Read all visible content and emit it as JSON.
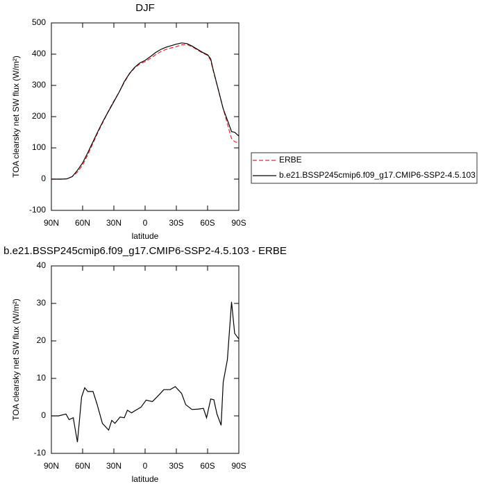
{
  "chart_data": [
    {
      "type": "line",
      "title": "DJF",
      "xlabel": "latitude",
      "ylabel": "TOA clearsky net SW flux (W/m²)",
      "x": [
        90,
        85,
        80,
        75,
        70,
        65,
        60,
        55,
        50,
        45,
        40,
        35,
        30,
        25,
        20,
        15,
        10,
        5,
        0,
        -5,
        -10,
        -15,
        -20,
        -25,
        -30,
        -35,
        -40,
        -45,
        -50,
        -55,
        -60,
        -63,
        -65,
        -70,
        -75,
        -80,
        -83,
        -86,
        -90
      ],
      "series": [
        {
          "name": "ERBE",
          "color": "#e8282a",
          "linestyle": "dashed",
          "values": [
            0,
            0,
            0,
            1,
            8,
            22,
            45,
            78,
            115,
            152,
            185,
            220,
            250,
            278,
            310,
            337,
            356,
            369,
            376,
            386,
            398,
            408,
            415,
            420,
            424,
            430,
            431,
            424,
            414,
            404,
            396,
            380,
            352,
            290,
            225,
            165,
            130,
            120,
            115
          ]
        },
        {
          "name": "b.e21.BSSP245cmip6.f09_g17.CMIP6-SSP2-4.5.103",
          "color": "#000000",
          "linestyle": "solid",
          "values": [
            0,
            0,
            0,
            1,
            8,
            28,
            52,
            85,
            120,
            155,
            188,
            218,
            248,
            278,
            312,
            338,
            358,
            372,
            380,
            392,
            405,
            415,
            422,
            427,
            432,
            436,
            434,
            426,
            416,
            406,
            398,
            385,
            355,
            290,
            225,
            180,
            152,
            150,
            138
          ]
        }
      ],
      "xlim": [
        90,
        -90
      ],
      "xticks": [
        {
          "value": 90,
          "label": "90N"
        },
        {
          "value": 60,
          "label": "60N"
        },
        {
          "value": 30,
          "label": "30N"
        },
        0,
        {
          "value": -30,
          "label": "30S"
        },
        {
          "value": -60,
          "label": "60S"
        },
        {
          "value": -90,
          "label": "90S"
        }
      ],
      "ylim": [
        -100,
        500
      ],
      "yticks": [
        -100,
        0,
        100,
        200,
        300,
        400,
        500
      ],
      "legend": "right"
    },
    {
      "type": "line",
      "title": "b.e21.BSSP245cmip6.f09_g17.CMIP6-SSP2-4.5.103 - ERBE",
      "xlabel": "latitude",
      "ylabel": "TOA clearsky net SW flux (W/m²)",
      "x": [
        90,
        83,
        76,
        73,
        69,
        65,
        61,
        58,
        55,
        50,
        46,
        41,
        35,
        32,
        29,
        24,
        20,
        17,
        13,
        9,
        4,
        -1,
        -7,
        -13,
        -18,
        -24,
        -29,
        -35,
        -39,
        -45,
        -51,
        -56,
        -59,
        -63,
        -66,
        -69,
        -73,
        -75,
        -79,
        -83,
        -86,
        -90
      ],
      "values": [
        0,
        0,
        0.5,
        -1,
        -0.5,
        -7,
        5,
        7.5,
        6.5,
        6.5,
        3,
        -2,
        -3.8,
        -1.2,
        -2,
        -0.3,
        -0.5,
        1.5,
        0.8,
        1.5,
        2.3,
        4.2,
        3.8,
        5.5,
        7,
        7,
        7.8,
        6,
        3,
        1.7,
        1.8,
        2,
        -0.5,
        4.5,
        4.3,
        0.5,
        -2.5,
        9,
        15,
        30.4,
        22,
        20.5
      ],
      "color": "#000000",
      "xlim": [
        90,
        -90
      ],
      "xticks": [
        {
          "value": 90,
          "label": "90N"
        },
        {
          "value": 60,
          "label": "60N"
        },
        {
          "value": 30,
          "label": "30N"
        },
        0,
        {
          "value": -30,
          "label": "30S"
        },
        {
          "value": -60,
          "label": "60S"
        },
        {
          "value": -90,
          "label": "90S"
        }
      ],
      "ylim": [
        -10,
        40
      ],
      "yticks": [
        -10,
        0,
        10,
        20,
        30,
        40
      ]
    }
  ]
}
